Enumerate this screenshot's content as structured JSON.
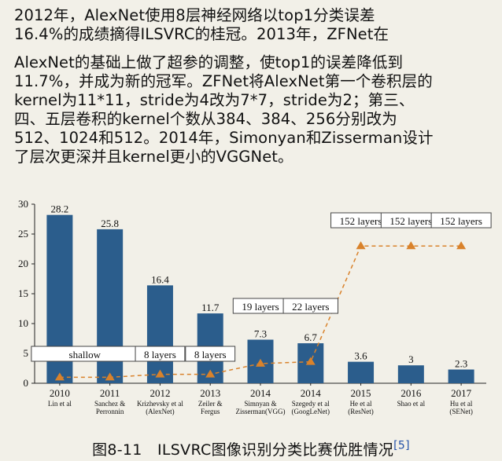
{
  "text": {
    "para1": "    2012年，AlexNet使用8层神经网络以top1分类误差\n16.4%的成绩摘得ILSVRC的桂冠。2013年，ZFNet在",
    "para2": "AlexNet的基础上做了超参的调整，使top1的误差降低到\n11.7%，并成为新的冠军。ZFNet将AlexNet第一个卷积层的\nkernel为11*11，stride为4改为7*7，stride为2；第三、\n四、五层卷积的kernel个数从384、384、256分别改为\n512、1024和512。2014年，Simonyan和Zisserman设计\n了层次更深并且kernel更小的VGGNet。"
  },
  "caption": {
    "text": "图8-11　ILSVRC图像识别分类比赛优胜情况",
    "ref": "[5]"
  },
  "chart_data": {
    "type": "bar",
    "categories": [
      "2010",
      "2011",
      "2012",
      "2013",
      "2014",
      "2014",
      "2015",
      "2016",
      "2017"
    ],
    "sublabels": [
      [
        "Lin et al"
      ],
      [
        "Sanchez &",
        "Perronnin"
      ],
      [
        "Krizhevsky et al",
        "(AlexNet)"
      ],
      [
        "Zeiler &",
        "Fergus"
      ],
      [
        "Simnyan &",
        "Zisserman(VGG)"
      ],
      [
        "Szegedy et al",
        "(GoogLeNet)"
      ],
      [
        "He et al",
        "(ResNet)"
      ],
      [
        "Shao et al"
      ],
      [
        "Hu et al",
        "(SENet)"
      ]
    ],
    "values": [
      28.2,
      25.8,
      16.4,
      11.7,
      7.3,
      6.7,
      3.6,
      3,
      2.3
    ],
    "value_labels": [
      "28.2",
      "25.8",
      "16.4",
      "11.7",
      "7.3",
      "6.7",
      "3.6",
      "3",
      "2.3"
    ],
    "yticks": [
      "0",
      "5",
      "10",
      "15",
      "20",
      "25",
      "30"
    ],
    "ylim": [
      0,
      30
    ],
    "layer_boxes": [
      "shallow",
      "8 layers",
      "8 layers",
      "19 layers",
      "22 layers",
      "152 layers",
      "152 layers",
      "152 layers"
    ],
    "depth_trend": {
      "note": "orange dashed line with triangle markers (relative network depth)",
      "values": [
        1,
        1,
        1.5,
        1.5,
        3.3,
        3.6,
        23,
        23,
        23
      ]
    },
    "colors": {
      "bar": "#2b5d8c",
      "trend": "#d9822b",
      "axis": "#222222",
      "text": "#111111"
    }
  }
}
